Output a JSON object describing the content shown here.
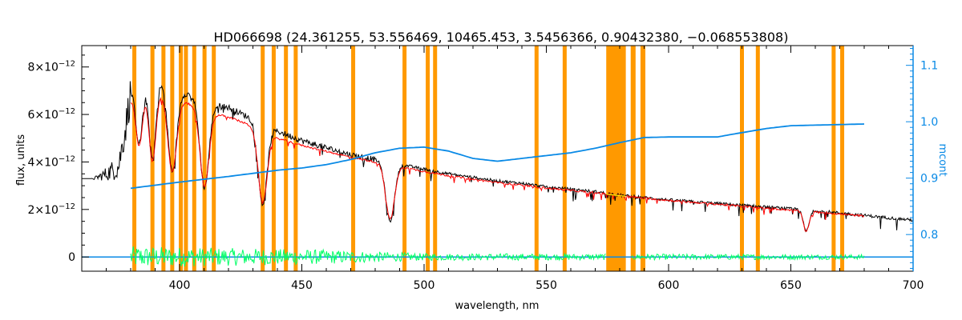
{
  "chart_data": {
    "type": "line",
    "title": "HD066698    (24.361255, 53.556469, 10465.453, 3.5456366, 0.90432380, −0.068553808)",
    "xlabel": "wavelength, nm",
    "ylabel": "flux, units",
    "y2label": "mcont",
    "xlim": [
      360,
      700
    ],
    "ylim": [
      -6e-13,
      8.9e-12
    ],
    "y2lim": [
      0.735,
      1.135
    ],
    "x_ticks": [
      400,
      450,
      500,
      550,
      600,
      650,
      700
    ],
    "x_tick_labels": [
      "400",
      "450",
      "500",
      "550",
      "600",
      "650",
      "700"
    ],
    "y_ticks": [
      0,
      2e-12,
      4e-12,
      6e-12,
      8e-12
    ],
    "y_tick_labels": [
      {
        "base": "0",
        "exp": ""
      },
      {
        "base": "2×10",
        "exp": "−12"
      },
      {
        "base": "4×10",
        "exp": "−12"
      },
      {
        "base": "6×10",
        "exp": "−12"
      },
      {
        "base": "8×10",
        "exp": "−12"
      }
    ],
    "y2_ticks": [
      0.8,
      0.9,
      1.0,
      1.1
    ],
    "y2_tick_labels": [
      "0.8",
      "0.9",
      "1.0",
      "1.1"
    ],
    "masked_wavelengths": [
      381.5,
      388.9,
      393.4,
      397.0,
      400.5,
      402.6,
      406.0,
      410.2,
      414.0,
      434.0,
      438.5,
      443.5,
      447.5,
      471.0,
      492.0,
      501.5,
      504.5,
      546.0,
      557.5,
      630.0,
      636.5,
      667.5,
      671.0
    ],
    "masked_bands": [
      [
        574.5,
        582.5
      ],
      [
        584.5,
        586.5
      ],
      [
        588.5,
        590.5
      ]
    ],
    "balmer_lines": [
      {
        "x": 383.5,
        "depth": 0.35
      },
      {
        "x": 388.9,
        "depth": 0.45
      },
      {
        "x": 397.0,
        "depth": 0.5
      },
      {
        "x": 410.2,
        "depth": 0.55
      },
      {
        "x": 434.0,
        "depth": 0.6
      },
      {
        "x": 486.1,
        "depth": 0.62
      },
      {
        "x": 656.3,
        "depth": 0.45
      }
    ],
    "series": [
      {
        "name": "",
        "color": "#000000",
        "x": [
          360,
          365,
          370,
          375,
          378,
          380,
          383,
          385,
          390,
          395,
          400,
          405,
          410,
          415,
          420,
          430,
          440,
          450,
          460,
          470,
          480,
          490,
          500,
          510,
          520,
          530,
          540,
          550,
          560,
          570,
          580,
          590,
          600,
          620,
          640,
          660,
          680,
          700
        ],
        "y": [
          3.3e-12,
          3.3e-12,
          3.5e-12,
          3.8e-12,
          5.5e-12,
          7e-12,
          7.3e-12,
          7.5e-12,
          7.5e-12,
          7.4e-12,
          7e-12,
          6.8e-12,
          6.5e-12,
          6.4e-12,
          6.3e-12,
          5.8e-12,
          5.3e-12,
          4.9e-12,
          4.6e-12,
          4.3e-12,
          4.1e-12,
          3.9e-12,
          3.7e-12,
          3.5e-12,
          3.35e-12,
          3.2e-12,
          3.1e-12,
          2.95e-12,
          2.85e-12,
          2.75e-12,
          2.6e-12,
          2.5e-12,
          2.4e-12,
          2.25e-12,
          2.1e-12,
          1.95e-12,
          1.75e-12,
          1.55e-12
        ]
      },
      {
        "name": "",
        "color": "#ff0000",
        "x": [
          380,
          383,
          385,
          390,
          395,
          400,
          405,
          410,
          415,
          420,
          430,
          440,
          450,
          460,
          470,
          480,
          490,
          500,
          510,
          520,
          530,
          540,
          550,
          560,
          570,
          580,
          590,
          600,
          620,
          640,
          660,
          680
        ],
        "y": [
          6.6e-12,
          7e-12,
          7.1e-12,
          7e-12,
          6.9e-12,
          6.6e-12,
          6.4e-12,
          6.2e-12,
          6e-12,
          5.9e-12,
          5.5e-12,
          5e-12,
          4.7e-12,
          4.45e-12,
          4.2e-12,
          4e-12,
          3.8e-12,
          3.6e-12,
          3.42e-12,
          3.27e-12,
          3.13e-12,
          3.02e-12,
          2.9e-12,
          2.8e-12,
          2.7e-12,
          2.58e-12,
          2.48e-12,
          2.38e-12,
          2.22e-12,
          2.05e-12,
          1.9e-12,
          1.72e-12
        ]
      },
      {
        "name": "",
        "color": "#0a8ae6",
        "axis": "right",
        "x": [
          380,
          400,
          420,
          440,
          450,
          460,
          470,
          480,
          490,
          500,
          510,
          520,
          530,
          540,
          550,
          560,
          570,
          580,
          590,
          600,
          620,
          625,
          640,
          650,
          660,
          670,
          680
        ],
        "y": [
          0.882,
          0.893,
          0.903,
          0.914,
          0.918,
          0.924,
          0.933,
          0.945,
          0.953,
          0.955,
          0.948,
          0.935,
          0.93,
          0.935,
          0.94,
          0.945,
          0.953,
          0.963,
          0.972,
          0.973,
          0.973,
          0.977,
          0.988,
          0.993,
          0.994,
          0.995,
          0.996
        ]
      },
      {
        "name": "",
        "color": "#00ff66",
        "x": [
          380,
          700
        ],
        "y": [
          0,
          0
        ],
        "note_amplitude": [
          [
            380,
            4.5e-13
          ],
          [
            460,
            3e-13
          ],
          [
            500,
            1.5e-13
          ],
          [
            680,
            1e-13
          ]
        ]
      }
    ],
    "blue_zero_line": [
      [
        360,
        0
      ],
      [
        700,
        0
      ]
    ],
    "grid": false,
    "legend": "none"
  },
  "colors": {
    "mask": "#ff9900",
    "observed": "#000000",
    "model": "#ff0000",
    "model_hidden": "#ffff00",
    "continuum": "#0a8ae6",
    "residual": "#00ff66",
    "right_axis": "#0a8ae6"
  }
}
